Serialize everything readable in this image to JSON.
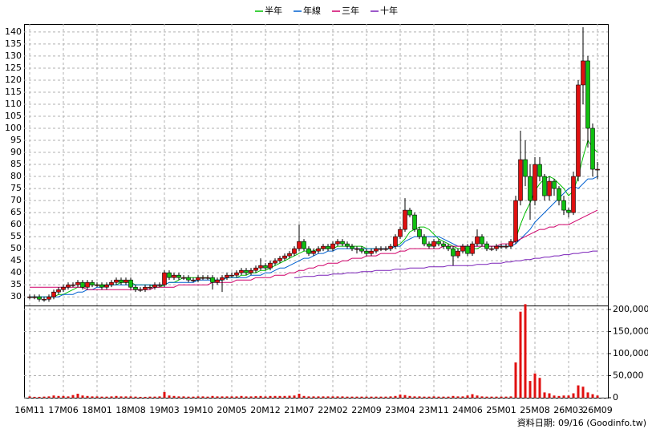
{
  "chart_data": {
    "type": "candlestick",
    "categories": [
      "16M11",
      null,
      null,
      null,
      null,
      null,
      null,
      "17M06",
      null,
      null,
      null,
      null,
      null,
      null,
      "18M01",
      null,
      null,
      null,
      null,
      null,
      null,
      "18M08",
      null,
      null,
      null,
      null,
      null,
      null,
      "19M03",
      null,
      null,
      null,
      null,
      null,
      null,
      "19M10",
      null,
      null,
      null,
      null,
      null,
      null,
      "20M05",
      null,
      null,
      null,
      null,
      null,
      null,
      "20M12",
      null,
      null,
      null,
      null,
      null,
      null,
      "21M07",
      null,
      null,
      null,
      null,
      null,
      null,
      "22M02",
      null,
      null,
      null,
      null,
      null,
      null,
      "22M09",
      null,
      null,
      null,
      null,
      null,
      null,
      "23M04",
      null,
      null,
      null,
      null,
      null,
      null,
      "23M11",
      null,
      null,
      null,
      null,
      null,
      null,
      "24M06",
      null,
      null,
      null,
      null,
      null,
      null,
      "25M01",
      null,
      null,
      null,
      null,
      null,
      null,
      "25M08",
      null,
      null,
      null,
      null,
      null,
      null,
      "26M03",
      null,
      null,
      null,
      null,
      null,
      "26M09"
    ],
    "open": [
      30,
      30,
      30,
      29,
      29,
      30,
      32,
      33,
      34,
      35,
      35,
      36,
      34,
      36,
      35,
      35,
      34,
      35,
      36,
      37,
      36,
      37,
      34,
      33,
      33,
      34,
      34,
      35,
      35,
      40,
      38,
      39,
      38,
      38,
      37,
      37,
      38,
      38,
      38,
      36,
      37,
      38,
      39,
      39,
      40,
      41,
      40,
      41,
      42,
      43,
      42,
      44,
      45,
      46,
      47,
      48,
      50,
      53,
      50,
      48,
      49,
      50,
      51,
      50,
      52,
      53,
      52,
      51,
      50,
      50,
      49,
      48,
      49,
      50,
      50,
      50,
      51,
      55,
      58,
      66,
      64,
      58,
      55,
      52,
      51,
      53,
      52,
      51,
      50,
      47,
      49,
      51,
      48,
      52,
      55,
      52,
      50,
      50,
      51,
      51,
      51,
      53,
      70,
      87,
      80,
      70,
      85,
      80,
      72,
      78,
      75,
      70,
      66,
      65,
      80,
      118,
      128,
      100,
      83
    ],
    "high": [
      31,
      31,
      31,
      30,
      31,
      33,
      34,
      35,
      36,
      36,
      37,
      37,
      37,
      37,
      36,
      36,
      36,
      37,
      38,
      38,
      38,
      38,
      35,
      34,
      35,
      35,
      36,
      36,
      41,
      41,
      40,
      40,
      39,
      39,
      38,
      39,
      39,
      39,
      39,
      38,
      39,
      40,
      40,
      41,
      42,
      42,
      42,
      43,
      46,
      44,
      45,
      46,
      47,
      48,
      49,
      51,
      60,
      54,
      51,
      50,
      51,
      52,
      52,
      53,
      54,
      54,
      53,
      52,
      51,
      51,
      50,
      50,
      51,
      51,
      51,
      52,
      56,
      59,
      71,
      67,
      65,
      59,
      56,
      53,
      54,
      54,
      53,
      52,
      51,
      50,
      52,
      52,
      53,
      58,
      56,
      53,
      51,
      52,
      52,
      52,
      54,
      72,
      99,
      95,
      85,
      88,
      88,
      81,
      80,
      79,
      76,
      72,
      67,
      82,
      120,
      142,
      130,
      102,
      86
    ],
    "low": [
      29,
      29,
      28,
      28,
      28,
      29,
      31,
      32,
      33,
      34,
      34,
      33,
      33,
      34,
      34,
      33,
      33,
      34,
      35,
      35,
      35,
      33,
      32,
      32,
      32,
      33,
      33,
      34,
      34,
      37,
      37,
      37,
      37,
      36,
      36,
      36,
      37,
      37,
      33,
      35,
      32,
      37,
      38,
      38,
      39,
      39,
      39,
      40,
      41,
      41,
      41,
      43,
      44,
      45,
      46,
      47,
      49,
      49,
      47,
      47,
      48,
      49,
      49,
      49,
      51,
      51,
      50,
      49,
      48,
      48,
      47,
      47,
      48,
      49,
      49,
      49,
      50,
      54,
      57,
      63,
      57,
      54,
      51,
      50,
      50,
      51,
      50,
      49,
      43,
      46,
      48,
      47,
      47,
      51,
      51,
      49,
      49,
      49,
      50,
      50,
      50,
      52,
      68,
      76,
      62,
      68,
      78,
      70,
      70,
      72,
      68,
      64,
      63,
      64,
      78,
      110,
      92,
      80,
      79
    ],
    "close": [
      30,
      30,
      29,
      29,
      30,
      32,
      33,
      34,
      35,
      35,
      36,
      34,
      36,
      35,
      35,
      34,
      35,
      36,
      37,
      36,
      37,
      34,
      33,
      33,
      34,
      34,
      35,
      35,
      40,
      38,
      39,
      38,
      38,
      37,
      37,
      38,
      38,
      38,
      36,
      37,
      38,
      39,
      39,
      40,
      41,
      40,
      41,
      42,
      43,
      42,
      44,
      45,
      46,
      47,
      48,
      50,
      53,
      50,
      48,
      49,
      50,
      51,
      50,
      52,
      53,
      52,
      51,
      50,
      50,
      49,
      48,
      49,
      50,
      50,
      50,
      51,
      55,
      58,
      66,
      64,
      58,
      55,
      52,
      51,
      53,
      52,
      51,
      50,
      47,
      49,
      51,
      48,
      52,
      55,
      52,
      50,
      50,
      51,
      51,
      51,
      53,
      70,
      87,
      80,
      70,
      85,
      80,
      72,
      78,
      75,
      70,
      66,
      65,
      80,
      118,
      128,
      100,
      83,
      83
    ],
    "up_color": "#e01010",
    "down_color": "#10c010",
    "ylim": [
      26.4,
      143.3
    ],
    "yticks": [
      30,
      35,
      40,
      45,
      50,
      55,
      60,
      65,
      70,
      75,
      80,
      85,
      90,
      95,
      100,
      105,
      110,
      115,
      120,
      125,
      130,
      135,
      140
    ],
    "grid": true,
    "series": [
      {
        "name": "半年",
        "color": "#00c000",
        "values": [
          30,
          30,
          30,
          30,
          30,
          30,
          31,
          31,
          32,
          33,
          34,
          34,
          35,
          35,
          35,
          35,
          35,
          35,
          35,
          36,
          36,
          36,
          35,
          35,
          35,
          35,
          34,
          34,
          35,
          36,
          36,
          37,
          38,
          38,
          38,
          38,
          38,
          38,
          37,
          37,
          37,
          38,
          38,
          38,
          39,
          39,
          40,
          40,
          41,
          41,
          42,
          43,
          44,
          45,
          46,
          47,
          48,
          49,
          49,
          49,
          50,
          50,
          50,
          50,
          51,
          51,
          51,
          51,
          51,
          51,
          50,
          50,
          50,
          50,
          50,
          50,
          51,
          52,
          54,
          57,
          58,
          59,
          59,
          58,
          56,
          54,
          53,
          52,
          51,
          50,
          50,
          50,
          50,
          50,
          51,
          51,
          51,
          51,
          51,
          51,
          51,
          54,
          60,
          65,
          69,
          74,
          77,
          79,
          80,
          79,
          77,
          75,
          72,
          74,
          80,
          88,
          95,
          92,
          90
        ]
      },
      {
        "name": "年線",
        "color": "#0060d0",
        "values": [
          30,
          30,
          30,
          30,
          30,
          30,
          30,
          31,
          31,
          31,
          32,
          32,
          33,
          33,
          34,
          34,
          35,
          35,
          35,
          35,
          35,
          35,
          35,
          35,
          35,
          35,
          35,
          35,
          35,
          36,
          36,
          36,
          36,
          36,
          36,
          37,
          37,
          37,
          37,
          37,
          37,
          38,
          38,
          38,
          38,
          38,
          39,
          39,
          39,
          40,
          40,
          41,
          42,
          42,
          43,
          44,
          45,
          46,
          46,
          47,
          48,
          48,
          49,
          49,
          50,
          50,
          50,
          50,
          50,
          50,
          50,
          50,
          50,
          50,
          50,
          50,
          51,
          51,
          53,
          54,
          55,
          55,
          55,
          55,
          55,
          55,
          54,
          53,
          52,
          51,
          51,
          51,
          51,
          51,
          51,
          51,
          51,
          51,
          51,
          51,
          51,
          52,
          54,
          56,
          58,
          61,
          63,
          65,
          67,
          69,
          71,
          73,
          75,
          76,
          75,
          77,
          79,
          79,
          80
        ]
      },
      {
        "name": "三年",
        "color": "#d0006a",
        "values": [
          34,
          34,
          34,
          34,
          34,
          34,
          34,
          34,
          34,
          34,
          34,
          34,
          33,
          33,
          33,
          33,
          33,
          33,
          33,
          33,
          33,
          33,
          33,
          33,
          33,
          33,
          34,
          34,
          34,
          34,
          34,
          35,
          35,
          35,
          35,
          35,
          35,
          35,
          36,
          36,
          36,
          36,
          36,
          37,
          37,
          37,
          37,
          38,
          38,
          38,
          38,
          39,
          39,
          39,
          40,
          40,
          41,
          41,
          42,
          42,
          43,
          43,
          44,
          44,
          44,
          45,
          45,
          46,
          46,
          46,
          47,
          47,
          47,
          48,
          48,
          48,
          48,
          49,
          49,
          50,
          50,
          50,
          50,
          50,
          50,
          50,
          51,
          51,
          51,
          51,
          51,
          51,
          51,
          51,
          51,
          51,
          51,
          51,
          52,
          52,
          52,
          53,
          54,
          55,
          56,
          57,
          58,
          58,
          59,
          59,
          60,
          60,
          60,
          61,
          62,
          63,
          64,
          65,
          66
        ]
      },
      {
        "name": "十年",
        "color": "#7a20b8",
        "values": [
          null,
          null,
          null,
          null,
          null,
          null,
          null,
          null,
          null,
          null,
          null,
          null,
          null,
          null,
          null,
          null,
          null,
          null,
          null,
          null,
          null,
          null,
          null,
          null,
          null,
          null,
          null,
          null,
          null,
          null,
          null,
          null,
          null,
          null,
          null,
          null,
          null,
          null,
          null,
          null,
          null,
          null,
          null,
          null,
          null,
          null,
          null,
          null,
          null,
          null,
          null,
          null,
          null,
          null,
          null,
          38,
          38,
          38.5,
          38.5,
          38.5,
          39,
          39,
          39,
          39.5,
          39.5,
          39.5,
          40,
          40,
          40,
          40.5,
          40.5,
          40.5,
          41,
          41,
          41,
          41,
          41.5,
          41.5,
          41.5,
          42,
          42,
          42,
          42,
          42.5,
          42.5,
          42.5,
          42.5,
          43,
          43,
          43,
          43,
          43,
          43,
          43.5,
          43.5,
          43.5,
          44,
          44,
          44,
          44.5,
          44.5,
          45,
          45,
          45.5,
          45.5,
          46,
          46,
          46.5,
          46.5,
          47,
          47,
          47.5,
          47.5,
          48,
          48,
          48.5,
          48.5,
          49,
          49
        ]
      }
    ],
    "volume": {
      "color": "#e01010",
      "values": [
        3000,
        2000,
        2000,
        2500,
        3000,
        5000,
        4000,
        4000,
        3000,
        6000,
        9000,
        5000,
        4000,
        3000,
        3000,
        2500,
        2500,
        3000,
        4000,
        3000,
        3000,
        3000,
        2500,
        2000,
        2000,
        2500,
        2500,
        3000,
        13000,
        5000,
        4000,
        3000,
        3000,
        2500,
        2500,
        3000,
        3000,
        2500,
        4000,
        3000,
        3000,
        3000,
        3000,
        3000,
        4000,
        3000,
        3000,
        3500,
        4000,
        3000,
        4000,
        4000,
        4000,
        4000,
        4500,
        5000,
        9000,
        4000,
        3000,
        3000,
        3000,
        3000,
        3000,
        3000,
        3000,
        3000,
        2500,
        2500,
        2500,
        2500,
        2500,
        2500,
        2500,
        2500,
        2500,
        3000,
        4000,
        7000,
        6000,
        4000,
        3000,
        3000,
        2500,
        2500,
        3000,
        2500,
        2500,
        2500,
        4000,
        3000,
        3000,
        5000,
        8000,
        5000,
        3000,
        2500,
        2500,
        2500,
        2500,
        2500,
        3000,
        80000,
        195000,
        212000,
        38000,
        55000,
        45000,
        12000,
        10000,
        5000,
        4000,
        5000,
        5000,
        10000,
        28000,
        25000,
        12000,
        8000,
        5000
      ],
      "ylim": [
        0,
        209000
      ],
      "yticks": [
        0,
        {
          "value": 50000,
          "label": "50,000"
        },
        {
          "value": 100000,
          "label": "100,000"
        },
        {
          "value": 150000,
          "label": "150,000"
        },
        {
          "value": 200000,
          "label": "200,000"
        }
      ]
    },
    "annotation": "資料日期: 09/16  (Goodinfo.tw)"
  }
}
